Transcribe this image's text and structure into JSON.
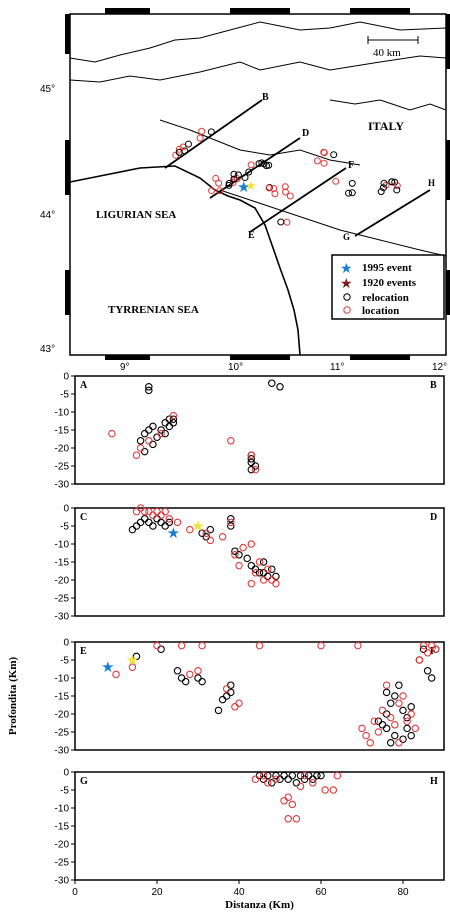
{
  "map": {
    "lat_labels": [
      "45°",
      "44°",
      "43°"
    ],
    "lon_labels": [
      "9°",
      "10°",
      "11°",
      "12°"
    ],
    "scale_label": "40 km",
    "region_labels": {
      "italy": "ITALY",
      "ligurian": "LIGURIAN SEA",
      "tyrrenian": "TYRRENIAN SEA"
    },
    "profile_letters": [
      "B",
      "D",
      "F",
      "H",
      "E",
      "G"
    ],
    "legend": [
      {
        "label": "1995 event",
        "symbol": "star",
        "color": "#1a7fd4"
      },
      {
        "label": "1920 events",
        "symbol": "star",
        "color": "#7a1c1c"
      },
      {
        "label": "relocation",
        "symbol": "circle",
        "color": "#000000"
      },
      {
        "label": "location",
        "symbol": "circle",
        "color": "#e03a3a"
      }
    ]
  },
  "chart_data": [
    {
      "type": "scatter",
      "start_label": "A",
      "end_label": "B",
      "ylim": [
        -30,
        0
      ],
      "xlim": [
        0,
        90
      ],
      "yticks": [
        0,
        -5,
        -10,
        -15,
        -20,
        -25,
        -30
      ],
      "series": [
        {
          "name": "relocation",
          "color": "#000000",
          "points": [
            [
              18,
              -3
            ],
            [
              18,
              -4
            ],
            [
              16,
              -18
            ],
            [
              17,
              -16
            ],
            [
              18,
              -15
            ],
            [
              19,
              -14
            ],
            [
              20,
              -17
            ],
            [
              21,
              -15
            ],
            [
              22,
              -13
            ],
            [
              23,
              -12
            ],
            [
              23,
              -14
            ],
            [
              24,
              -12
            ],
            [
              24,
              -13
            ],
            [
              22,
              -16
            ],
            [
              19,
              -19
            ],
            [
              17,
              -21
            ],
            [
              43,
              -22
            ],
            [
              43,
              -23
            ],
            [
              43,
              -24
            ],
            [
              44,
              -25
            ],
            [
              43,
              -26
            ],
            [
              48,
              -2
            ],
            [
              50,
              -3
            ]
          ]
        },
        {
          "name": "location",
          "color": "#e03a3a",
          "points": [
            [
              9,
              -16
            ],
            [
              15,
              -22
            ],
            [
              16,
              -20
            ],
            [
              18,
              -18
            ],
            [
              21,
              -16
            ],
            [
              24,
              -11
            ],
            [
              38,
              -18
            ],
            [
              43,
              -22
            ],
            [
              44,
              -26
            ]
          ]
        }
      ]
    },
    {
      "type": "scatter",
      "start_label": "C",
      "end_label": "D",
      "ylim": [
        -30,
        0
      ],
      "xlim": [
        0,
        90
      ],
      "yticks": [
        0,
        -5,
        -10,
        -15,
        -20,
        -25,
        -30
      ],
      "stars": [
        {
          "x": 24,
          "y": -7,
          "color": "#1a7fd4"
        },
        {
          "x": 30,
          "y": -5,
          "color": "#f2e23a"
        }
      ],
      "series": [
        {
          "name": "relocation",
          "color": "#000000",
          "points": [
            [
              15,
              -5
            ],
            [
              16,
              -4
            ],
            [
              17,
              -3
            ],
            [
              18,
              -4
            ],
            [
              19,
              -5
            ],
            [
              20,
              -3
            ],
            [
              21,
              -4
            ],
            [
              22,
              -5
            ],
            [
              23,
              -4
            ],
            [
              14,
              -6
            ],
            [
              31,
              -7
            ],
            [
              32,
              -8
            ],
            [
              33,
              -6
            ],
            [
              38,
              -3
            ],
            [
              38,
              -5
            ],
            [
              39,
              -12
            ],
            [
              40,
              -13
            ],
            [
              42,
              -14
            ],
            [
              43,
              -16
            ],
            [
              44,
              -17
            ],
            [
              45,
              -18
            ],
            [
              46,
              -18
            ],
            [
              47,
              -19
            ],
            [
              48,
              -17
            ],
            [
              49,
              -19
            ],
            [
              46,
              -15
            ]
          ]
        },
        {
          "name": "location",
          "color": "#e03a3a",
          "points": [
            [
              15,
              -1
            ],
            [
              16,
              0
            ],
            [
              17,
              -1
            ],
            [
              18,
              -1
            ],
            [
              19,
              -2
            ],
            [
              20,
              -1
            ],
            [
              21,
              -2
            ],
            [
              22,
              -1
            ],
            [
              23,
              -3
            ],
            [
              25,
              -4
            ],
            [
              28,
              -6
            ],
            [
              32,
              -7
            ],
            [
              33,
              -9
            ],
            [
              36,
              -8
            ],
            [
              38,
              -4
            ],
            [
              39,
              -13
            ],
            [
              40,
              -16
            ],
            [
              41,
              -11
            ],
            [
              43,
              -10
            ],
            [
              43,
              -21
            ],
            [
              44,
              -18
            ],
            [
              45,
              -15
            ],
            [
              46,
              -20
            ],
            [
              47,
              -17
            ],
            [
              48,
              -20
            ],
            [
              49,
              -21
            ]
          ]
        }
      ]
    },
    {
      "type": "scatter",
      "start_label": "E",
      "end_label": "F",
      "ylim": [
        -30,
        0
      ],
      "xlim": [
        0,
        90
      ],
      "yticks": [
        0,
        -5,
        -10,
        -15,
        -20,
        -25,
        -30
      ],
      "ylabel": "Profondita (Km)",
      "stars": [
        {
          "x": 8,
          "y": -7,
          "color": "#1a7fd4"
        },
        {
          "x": 14,
          "y": -5,
          "color": "#f2e23a"
        }
      ],
      "series": [
        {
          "name": "relocation",
          "color": "#000000",
          "points": [
            [
              15,
              -4
            ],
            [
              21,
              -2
            ],
            [
              25,
              -8
            ],
            [
              26,
              -10
            ],
            [
              27,
              -11
            ],
            [
              30,
              -10
            ],
            [
              31,
              -11
            ],
            [
              37,
              -15
            ],
            [
              38,
              -14
            ],
            [
              38,
              -12
            ],
            [
              36,
              -16
            ],
            [
              35,
              -19
            ],
            [
              74,
              -22
            ],
            [
              75,
              -23
            ],
            [
              76,
              -24
            ],
            [
              76,
              -20
            ],
            [
              77,
              -17
            ],
            [
              78,
              -15
            ],
            [
              79,
              -12
            ],
            [
              80,
              -19
            ],
            [
              81,
              -21
            ],
            [
              82,
              -18
            ],
            [
              81,
              -24
            ],
            [
              82,
              -26
            ],
            [
              80,
              -27
            ],
            [
              78,
              -26
            ],
            [
              77,
              -28
            ],
            [
              76,
              -14
            ],
            [
              85,
              -2
            ],
            [
              86,
              -8
            ],
            [
              87,
              -10
            ],
            [
              88,
              -2
            ],
            [
              84,
              -5
            ]
          ]
        },
        {
          "name": "location",
          "color": "#e03a3a",
          "points": [
            [
              10,
              -9
            ],
            [
              14,
              -7
            ],
            [
              20,
              -1
            ],
            [
              26,
              -1
            ],
            [
              28,
              -9
            ],
            [
              30,
              -8
            ],
            [
              31,
              -1
            ],
            [
              37,
              -13
            ],
            [
              39,
              -18
            ],
            [
              40,
              -17
            ],
            [
              45,
              -1
            ],
            [
              60,
              -1
            ],
            [
              69,
              -1
            ],
            [
              70,
              -24
            ],
            [
              71,
              -26
            ],
            [
              72,
              -28
            ],
            [
              73,
              -22
            ],
            [
              74,
              -25
            ],
            [
              75,
              -19
            ],
            [
              76,
              -12
            ],
            [
              77,
              -21
            ],
            [
              78,
              -23
            ],
            [
              79,
              -17
            ],
            [
              80,
              -15
            ],
            [
              81,
              -22
            ],
            [
              82,
              -20
            ],
            [
              83,
              -24
            ],
            [
              79,
              -28
            ],
            [
              84,
              -5
            ],
            [
              85,
              -1
            ],
            [
              86,
              -3
            ],
            [
              87,
              -1
            ],
            [
              88,
              -2
            ]
          ]
        }
      ]
    },
    {
      "type": "scatter",
      "start_label": "G",
      "end_label": "H",
      "ylim": [
        -30,
        0
      ],
      "xlim": [
        0,
        90
      ],
      "yticks": [
        0,
        -5,
        -10,
        -15,
        -20,
        -25,
        -30
      ],
      "xticks": [
        0,
        20,
        40,
        60,
        80
      ],
      "xlabel": "Distanza (Km)",
      "series": [
        {
          "name": "relocation",
          "color": "#000000",
          "points": [
            [
              45,
              -1
            ],
            [
              46,
              -2
            ],
            [
              47,
              -1
            ],
            [
              48,
              -3
            ],
            [
              49,
              -1
            ],
            [
              50,
              -2
            ],
            [
              51,
              -1
            ],
            [
              52,
              -2
            ],
            [
              53,
              -1
            ],
            [
              54,
              -3
            ],
            [
              55,
              -1
            ],
            [
              56,
              -2
            ],
            [
              57,
              -1
            ],
            [
              58,
              -2
            ],
            [
              59,
              -1
            ],
            [
              60,
              -1
            ]
          ]
        },
        {
          "name": "location",
          "color": "#e03a3a",
          "points": [
            [
              44,
              -2
            ],
            [
              46,
              -1
            ],
            [
              47,
              -3
            ],
            [
              49,
              -2
            ],
            [
              51,
              -8
            ],
            [
              52,
              -7
            ],
            [
              53,
              -9
            ],
            [
              52,
              -13
            ],
            [
              54,
              -13
            ],
            [
              55,
              -4
            ],
            [
              56,
              -1
            ],
            [
              58,
              -3
            ],
            [
              61,
              -5
            ],
            [
              63,
              -5
            ],
            [
              64,
              -1
            ]
          ]
        }
      ]
    }
  ]
}
